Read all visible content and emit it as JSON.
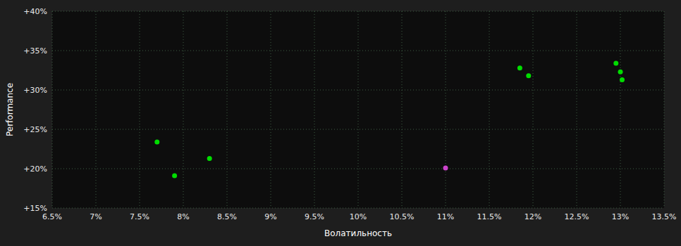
{
  "chart_data": {
    "type": "scatter",
    "xlabel": "Волатильность",
    "ylabel": "Performance",
    "x": [
      0.077,
      0.079,
      0.083,
      0.11,
      0.1185,
      0.1195,
      0.1295,
      0.13,
      0.1302
    ],
    "values": [
      0.234,
      0.191,
      0.213,
      0.201,
      0.328,
      0.318,
      0.334,
      0.323,
      0.313
    ],
    "colors": [
      "#00dd00",
      "#00dd00",
      "#00dd00",
      "#cc44cc",
      "#00dd00",
      "#00dd00",
      "#00dd00",
      "#00dd00",
      "#00dd00"
    ],
    "xlim": [
      0.065,
      0.135
    ],
    "ylim": [
      0.15,
      0.4
    ],
    "xticks": [
      {
        "value": 0.065,
        "label": "6.5%"
      },
      {
        "value": 0.07,
        "label": "7%"
      },
      {
        "value": 0.075,
        "label": "7.5%"
      },
      {
        "value": 0.08,
        "label": "8%"
      },
      {
        "value": 0.085,
        "label": "8.5%"
      },
      {
        "value": 0.09,
        "label": "9%"
      },
      {
        "value": 0.095,
        "label": "9.5%"
      },
      {
        "value": 0.1,
        "label": "10%"
      },
      {
        "value": 0.105,
        "label": "10.5%"
      },
      {
        "value": 0.11,
        "label": "11%"
      },
      {
        "value": 0.115,
        "label": "11.5%"
      },
      {
        "value": 0.12,
        "label": "12%"
      },
      {
        "value": 0.125,
        "label": "12.5%"
      },
      {
        "value": 0.13,
        "label": "13%"
      },
      {
        "value": 0.135,
        "label": "13.5%"
      }
    ],
    "yticks": [
      {
        "value": 0.15,
        "label": "+15%"
      },
      {
        "value": 0.2,
        "label": "+20%"
      },
      {
        "value": 0.25,
        "label": "+25%"
      },
      {
        "value": 0.3,
        "label": "+30%"
      },
      {
        "value": 0.35,
        "label": "+35%"
      },
      {
        "value": 0.4,
        "label": "+40%"
      }
    ],
    "grid": true
  }
}
